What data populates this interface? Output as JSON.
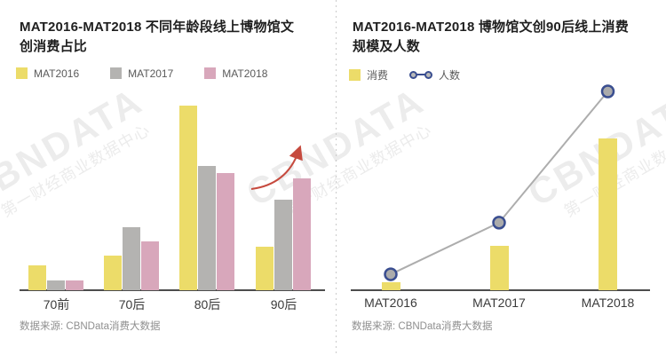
{
  "watermark": {
    "line1": "CBNDATA",
    "line2": "第一财经商业数据中心"
  },
  "chart_data": [
    {
      "type": "bar",
      "title": "MAT2016-MAT2018 不同年龄段线上博物馆文\n创消费占比",
      "categories": [
        "70前",
        "70后",
        "80后",
        "90后"
      ],
      "series": [
        {
          "name": "MAT2016",
          "color": "#ECDC69",
          "values": [
            8.6,
            12.0,
            64.2,
            15.1
          ]
        },
        {
          "name": "MAT2017",
          "color": "#B4B3B1",
          "values": [
            3.3,
            21.9,
            43.2,
            31.6
          ]
        },
        {
          "name": "MAT2018",
          "color": "#D8A7BB",
          "values": [
            3.4,
            17.0,
            40.6,
            39.0
          ]
        }
      ],
      "unit": "%",
      "ylim": [
        0,
        70
      ],
      "y_axis_visible": false,
      "grid": false,
      "legend_position": "top",
      "annotation": {
        "type": "curved-up-arrow",
        "color": "#C64A3E",
        "position": "above 90后 group"
      },
      "source": "数据来源: CBNData消费大数据"
    },
    {
      "type": "bar+line",
      "title": "MAT2016-MAT2018 博物馆文创90后线上消费\n规模及人数",
      "categories": [
        "MAT2016",
        "MAT2017",
        "MAT2018"
      ],
      "series": [
        {
          "name": "消费",
          "type": "bar",
          "color": "#ECDC69",
          "values": [
            5,
            29,
            100
          ]
        },
        {
          "name": "人数",
          "type": "line",
          "line_color": "#ADADAD",
          "marker_fill": "#ABABAB",
          "marker_border": "#3A4E90",
          "values": [
            8,
            34,
            100
          ]
        }
      ],
      "ylim": [
        0,
        110
      ],
      "y_axis_visible": false,
      "values_scale": "relative (no axis labels shown)",
      "grid": false,
      "legend_position": "top",
      "source": "数据来源: CBNData消费大数据"
    }
  ]
}
